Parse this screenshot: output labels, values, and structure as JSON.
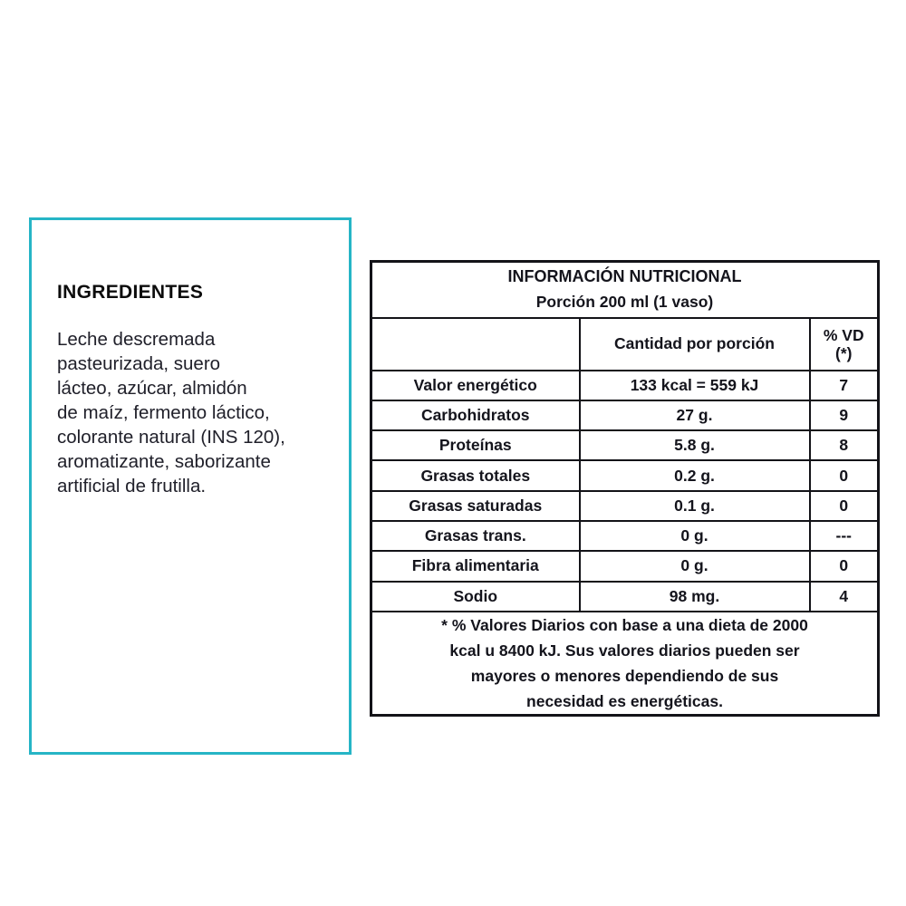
{
  "accent_border_color": "#26b5c6",
  "ingredients": {
    "title": "INGREDIENTES",
    "text": "Leche descremada\npasteurizada, suero\nlácteo, azúcar, almidón\nde maíz, fermento láctico,\ncolorante natural (INS 120),\naromatizante, saborizante\nartificial de frutilla."
  },
  "nutrition": {
    "title": "INFORMACIÓN NUTRICIONAL",
    "subtitle": "Porción 200 ml (1 vaso)",
    "columns": {
      "label": "",
      "amount": "Cantidad por porción",
      "vd": "% VD\n(*)"
    },
    "rows": [
      {
        "label": "Valor energético",
        "amount": "133 kcal = 559 kJ",
        "vd": "7"
      },
      {
        "label": "Carbohidratos",
        "amount": "27 g.",
        "vd": "9"
      },
      {
        "label": "Proteínas",
        "amount": "5.8 g.",
        "vd": "8"
      },
      {
        "label": "Grasas totales",
        "amount": "0.2 g.",
        "vd": "0"
      },
      {
        "label": "Grasas saturadas",
        "amount": "0.1 g.",
        "vd": "0"
      },
      {
        "label": "Grasas trans.",
        "amount": "0 g.",
        "vd": "---"
      },
      {
        "label": "Fibra alimentaria",
        "amount": "0 g.",
        "vd": "0"
      },
      {
        "label": "Sodio",
        "amount": "98 mg.",
        "vd": "4"
      }
    ],
    "footnote": "* % Valores Diarios con base a una dieta de 2000\nkcal u 8400 kJ. Sus valores diarios pueden ser\nmayores o menores dependiendo de sus\nnecesidad es energéticas."
  }
}
